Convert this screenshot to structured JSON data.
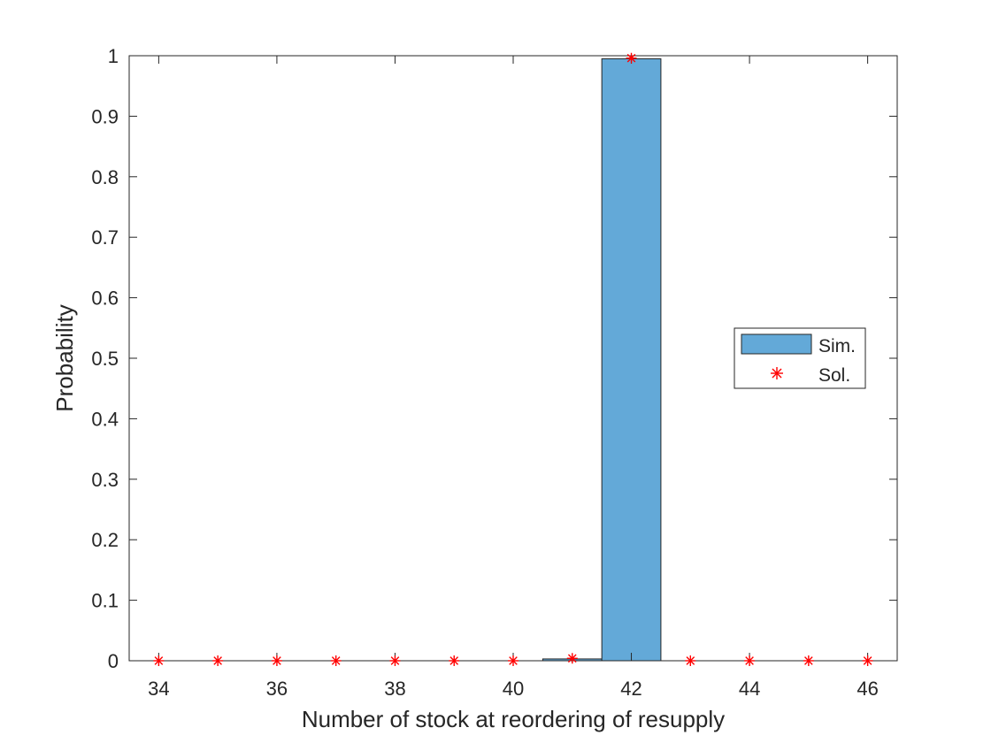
{
  "chart_data": {
    "type": "bar",
    "title": "",
    "xlabel": "Number of stock at reordering of resupply",
    "ylabel": "Probability",
    "xlim": [
      33.5,
      46.5
    ],
    "ylim": [
      0,
      1
    ],
    "xticks": [
      34,
      36,
      38,
      40,
      42,
      44,
      46
    ],
    "yticks": [
      0,
      0.1,
      0.2,
      0.3,
      0.4,
      0.5,
      0.6,
      0.7,
      0.8,
      0.9,
      1
    ],
    "ytick_labels": [
      "0",
      "0.1",
      "0.2",
      "0.3",
      "0.4",
      "0.5",
      "0.6",
      "0.7",
      "0.8",
      "0.9",
      "1"
    ],
    "grid": false,
    "legend_position": "right",
    "series": [
      {
        "name": "Sim.",
        "kind": "bar",
        "color": "#63A9D8",
        "x": [
          34,
          35,
          36,
          37,
          38,
          39,
          40,
          41,
          42,
          43,
          44,
          45,
          46
        ],
        "values": [
          0,
          0,
          0,
          0,
          0,
          0,
          0,
          0.003,
          0.995,
          0,
          0,
          0,
          0
        ]
      },
      {
        "name": "Sol.",
        "kind": "marker",
        "marker": "asterisk",
        "color": "#FF0000",
        "x": [
          34,
          35,
          36,
          37,
          38,
          39,
          40,
          41,
          42,
          43,
          44,
          45,
          46
        ],
        "values": [
          0,
          0,
          0,
          0,
          0,
          0,
          0,
          0.004,
          0.996,
          0,
          0,
          0,
          0
        ]
      }
    ]
  }
}
